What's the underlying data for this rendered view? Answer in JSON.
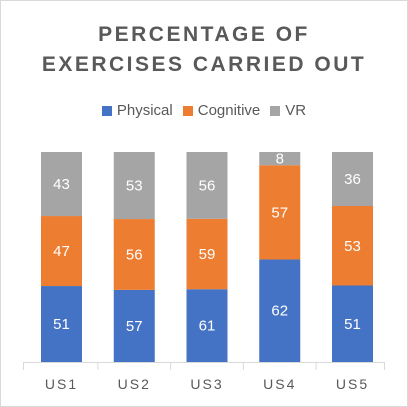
{
  "chart_data": {
    "type": "bar",
    "stacked": true,
    "title_lines": [
      "PERCENTAGE OF",
      "EXERCISES CARRIED OUT"
    ],
    "categories": [
      "US1",
      "US2",
      "US3",
      "US4",
      "US5"
    ],
    "series": [
      {
        "name": "Physical",
        "color": "#4472c4",
        "values": [
          51,
          57,
          61,
          62,
          51
        ]
      },
      {
        "name": "Cognitive",
        "color": "#ed7d31",
        "values": [
          47,
          56,
          59,
          57,
          53
        ]
      },
      {
        "name": "VR",
        "color": "#a5a5a5",
        "values": [
          43,
          53,
          56,
          8,
          36
        ]
      }
    ],
    "normalized_to_100": true,
    "legend_position": "top",
    "grid": false,
    "xlabel": "",
    "ylabel": ""
  }
}
